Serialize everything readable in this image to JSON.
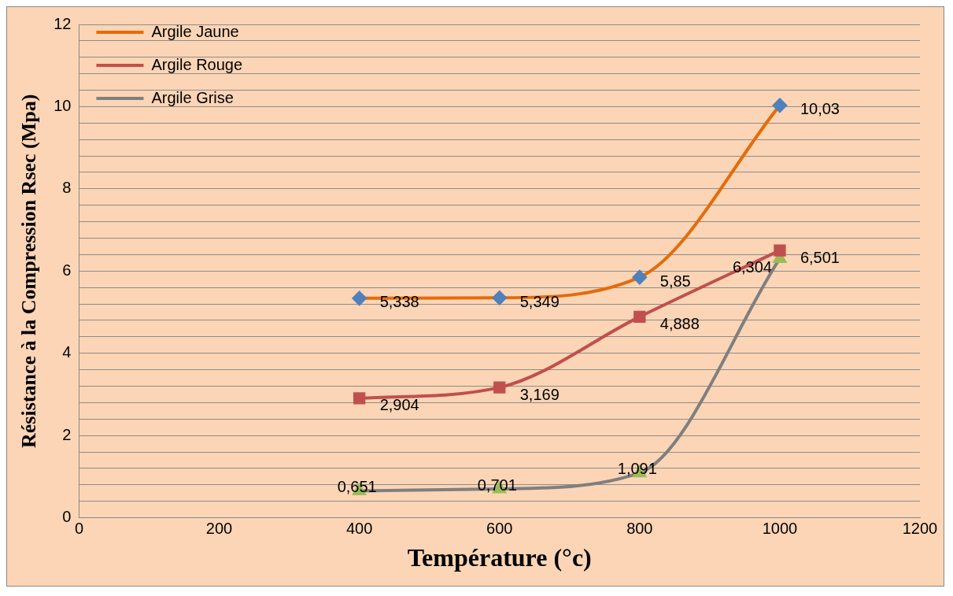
{
  "chart_data": {
    "type": "line",
    "xlabel": "Température (°c)",
    "ylabel": "Résistance à la Compression Rsec (Mpa)",
    "x": [
      400,
      600,
      800,
      1000
    ],
    "series": [
      {
        "name": "Argile Jaune",
        "color": "#e46c0a",
        "colors": [
          "#4f81bd",
          "#4f81bd",
          "#4f81bd",
          "#4f81bd"
        ],
        "marker": "diamond",
        "values": [
          5.338,
          5.349,
          5.85,
          10.03
        ],
        "value_labels": [
          "5,338",
          "5,349",
          "5,85",
          "10,03"
        ]
      },
      {
        "name": "Argile Rouge",
        "color": "#c0504d",
        "colors": [
          "#c0504d",
          "#c0504d",
          "#c0504d",
          "#c0504d"
        ],
        "marker": "square",
        "values": [
          2.904,
          3.169,
          4.888,
          6.501
        ],
        "value_labels": [
          "2,904",
          "3,169",
          "4,888",
          "6,501"
        ]
      },
      {
        "name": "Argile Grise",
        "color": "#7f7f7f",
        "colors": [
          "#9bbb59",
          "#9bbb59",
          "#9bbb59",
          "#9bbb59"
        ],
        "marker": "triangle",
        "values": [
          0.651,
          0.701,
          1.091,
          6.304
        ],
        "value_labels": [
          "0,651",
          "0,701",
          "1,091",
          "6,304"
        ]
      }
    ],
    "xlim": [
      0,
      1200
    ],
    "xticks": [
      0,
      200,
      400,
      600,
      800,
      1000,
      1200
    ],
    "ylim": [
      0,
      12
    ],
    "yticks": [
      0,
      {
        "value": 0.4,
        "label": null
      },
      {
        "value": 0.8,
        "label": null
      },
      {
        "value": 1.2,
        "label": null
      },
      {
        "value": 1.6,
        "label": null
      },
      2,
      {
        "value": 2.4,
        "label": null
      },
      {
        "value": 2.8,
        "label": null
      },
      {
        "value": 3.2,
        "label": null
      },
      {
        "value": 3.6,
        "label": null
      },
      4,
      {
        "value": 4.4,
        "label": null
      },
      {
        "value": 4.8,
        "label": null
      },
      {
        "value": 5.2,
        "label": null
      },
      {
        "value": 5.6,
        "label": null
      },
      6,
      {
        "value": 6.4,
        "label": null
      },
      {
        "value": 6.8,
        "label": null
      },
      {
        "value": 7.2,
        "label": null
      },
      {
        "value": 7.6,
        "label": null
      },
      8,
      {
        "value": 8.4,
        "label": null
      },
      {
        "value": 8.8,
        "label": null
      },
      {
        "value": 9.2,
        "label": null
      },
      {
        "value": 9.6,
        "label": null
      },
      10,
      {
        "value": 10.4,
        "label": null
      },
      {
        "value": 10.8,
        "label": null
      },
      {
        "value": 11.2,
        "label": null
      },
      {
        "value": 11.6,
        "label": null
      },
      12
    ],
    "grid": "y",
    "legend": "top left",
    "line_style": "solid"
  }
}
